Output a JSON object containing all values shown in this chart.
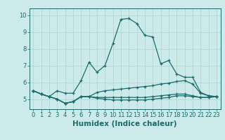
{
  "xlabel": "Humidex (Indice chaleur)",
  "bg_color": "#cceaea",
  "grid_color": "#aad4d4",
  "line_color": "#1a6b6b",
  "x_ticks": [
    0,
    1,
    2,
    3,
    4,
    5,
    6,
    7,
    8,
    9,
    10,
    11,
    12,
    13,
    14,
    15,
    16,
    17,
    18,
    19,
    20,
    21,
    22,
    23
  ],
  "y_ticks": [
    5,
    6,
    7,
    8,
    9,
    10
  ],
  "ylim": [
    4.4,
    10.4
  ],
  "xlim": [
    -0.5,
    23.5
  ],
  "series": [
    [
      5.5,
      5.3,
      5.15,
      5.5,
      5.35,
      5.35,
      6.1,
      7.2,
      6.6,
      7.0,
      8.3,
      9.75,
      9.8,
      9.5,
      8.8,
      8.7,
      7.1,
      7.3,
      6.5,
      6.3,
      6.3,
      5.4,
      5.2,
      5.15
    ],
    [
      5.5,
      5.3,
      5.15,
      5.0,
      4.75,
      4.85,
      5.15,
      5.15,
      5.4,
      5.5,
      5.55,
      5.6,
      5.65,
      5.7,
      5.75,
      5.8,
      5.9,
      5.95,
      6.05,
      6.1,
      5.9,
      5.35,
      5.2,
      5.15
    ],
    [
      5.5,
      5.3,
      5.15,
      5.0,
      4.75,
      4.85,
      5.15,
      5.15,
      5.1,
      5.1,
      5.1,
      5.1,
      5.1,
      5.1,
      5.1,
      5.15,
      5.2,
      5.25,
      5.3,
      5.3,
      5.2,
      5.1,
      5.1,
      5.15
    ],
    [
      5.5,
      5.3,
      5.15,
      5.0,
      4.75,
      4.85,
      5.15,
      5.15,
      5.05,
      5.0,
      4.95,
      4.95,
      4.95,
      4.95,
      4.95,
      5.0,
      5.05,
      5.1,
      5.2,
      5.2,
      5.15,
      5.1,
      5.1,
      5.15
    ]
  ],
  "tick_fontsize": 6.0,
  "xlabel_fontsize": 7.5
}
